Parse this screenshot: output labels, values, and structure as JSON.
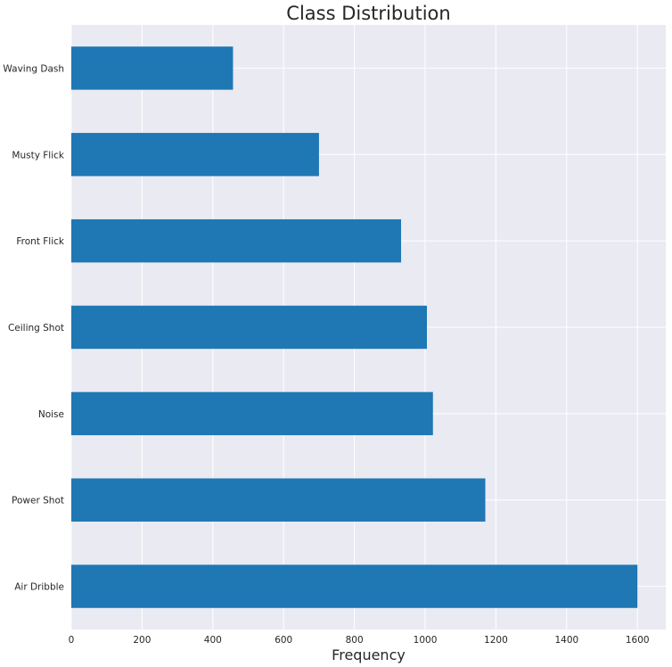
{
  "chart_data": {
    "type": "bar",
    "orientation": "horizontal",
    "title": "Class Distribution",
    "xlabel": "Frequency",
    "ylabel": "",
    "categories": [
      "Air Dribble",
      "Power Shot",
      "Noise",
      "Ceiling Shot",
      "Front Flick",
      "Musty Flick",
      "Waving Dash"
    ],
    "values": [
      1600,
      1170,
      1022,
      1005,
      932,
      700,
      457
    ],
    "xlim": [
      0,
      1680
    ],
    "xticks": [
      0,
      200,
      400,
      600,
      800,
      1000,
      1200,
      1400,
      1600
    ],
    "grid": true,
    "bar_color": "#1f77b4",
    "plot_background": "#eaeaf2",
    "grid_color": "#ffffff"
  }
}
